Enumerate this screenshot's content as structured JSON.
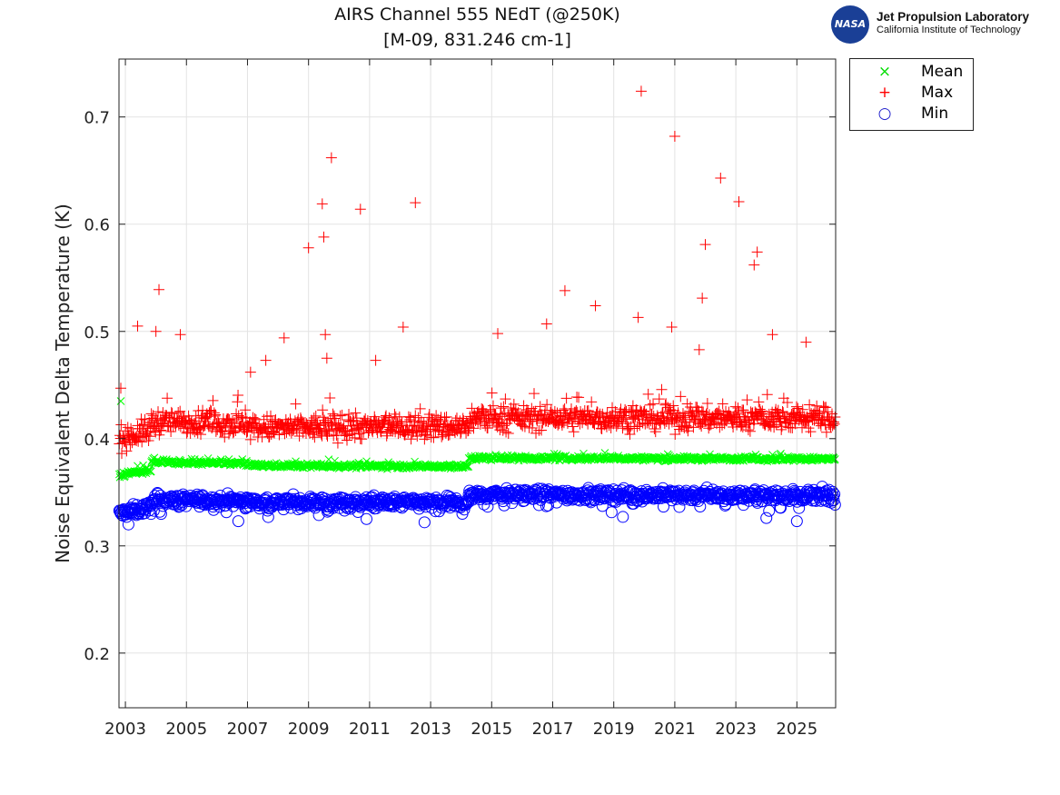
{
  "header": {
    "logo_line1": "Jet Propulsion Laboratory",
    "logo_line2": "California Institute of Technology",
    "logo_badge": "NASA"
  },
  "chart_data": {
    "type": "scatter",
    "title": [
      "AIRS Channel 555 NEdT (@250K)",
      "[M-09, 831.246 cm-1]"
    ],
    "xlabel": "",
    "ylabel": "Noise Equivalent Delta Temperature (K)",
    "xlim": [
      2002.79,
      2026.27
    ],
    "ylim": [
      0.149,
      0.754
    ],
    "xticks": [
      2003,
      2005,
      2007,
      2009,
      2011,
      2013,
      2015,
      2017,
      2019,
      2021,
      2023,
      2025
    ],
    "yticks": [
      0.2,
      0.3,
      0.4,
      0.5,
      0.6,
      0.7
    ],
    "grid": true,
    "legend_position": "outside-top-right",
    "series": [
      {
        "name": "Mean",
        "marker": "x",
        "color": "#00ff00",
        "segments": [
          {
            "from": 2002.8,
            "to": 2003.85,
            "start": 0.366,
            "end": 0.371,
            "noise": 0.002
          },
          {
            "from": 2003.85,
            "to": 2007.0,
            "start": 0.378,
            "end": 0.377,
            "noise": 0.0015
          },
          {
            "from": 2007.0,
            "to": 2014.25,
            "start": 0.375,
            "end": 0.374,
            "noise": 0.0015
          },
          {
            "from": 2014.25,
            "to": 2026.25,
            "start": 0.382,
            "end": 0.381,
            "noise": 0.0015
          }
        ],
        "outliers": [
          [
            2002.85,
            0.435
          ],
          [
            2024.2,
            0.385
          ]
        ]
      },
      {
        "name": "Max",
        "marker": "+",
        "color": "#ff0000",
        "segments": [
          {
            "from": 2002.8,
            "to": 2003.85,
            "start": 0.4,
            "end": 0.408,
            "noise": 0.008
          },
          {
            "from": 2003.85,
            "to": 2007.0,
            "start": 0.416,
            "end": 0.414,
            "noise": 0.008
          },
          {
            "from": 2007.0,
            "to": 2014.25,
            "start": 0.41,
            "end": 0.411,
            "noise": 0.008
          },
          {
            "from": 2014.25,
            "to": 2026.25,
            "start": 0.419,
            "end": 0.419,
            "noise": 0.008
          }
        ],
        "outliers": [
          [
            2002.85,
            0.447
          ],
          [
            2003.4,
            0.505
          ],
          [
            2004.0,
            0.5
          ],
          [
            2004.1,
            0.539
          ],
          [
            2004.8,
            0.497
          ],
          [
            2007.1,
            0.462
          ],
          [
            2007.6,
            0.473
          ],
          [
            2008.2,
            0.494
          ],
          [
            2009.0,
            0.578
          ],
          [
            2009.45,
            0.619
          ],
          [
            2009.5,
            0.588
          ],
          [
            2009.55,
            0.497
          ],
          [
            2009.6,
            0.475
          ],
          [
            2009.75,
            0.662
          ],
          [
            2010.7,
            0.614
          ],
          [
            2011.2,
            0.473
          ],
          [
            2012.1,
            0.504
          ],
          [
            2012.5,
            0.62
          ],
          [
            2015.2,
            0.498
          ],
          [
            2016.8,
            0.507
          ],
          [
            2017.4,
            0.538
          ],
          [
            2018.4,
            0.524
          ],
          [
            2019.8,
            0.513
          ],
          [
            2019.9,
            0.724
          ],
          [
            2020.9,
            0.504
          ],
          [
            2021.0,
            0.682
          ],
          [
            2021.8,
            0.483
          ],
          [
            2021.9,
            0.531
          ],
          [
            2022.0,
            0.581
          ],
          [
            2022.5,
            0.643
          ],
          [
            2023.1,
            0.621
          ],
          [
            2023.6,
            0.562
          ],
          [
            2023.7,
            0.574
          ],
          [
            2024.2,
            0.497
          ],
          [
            2025.3,
            0.49
          ]
        ]
      },
      {
        "name": "Min",
        "marker": "o",
        "color": "#0000ff",
        "segments": [
          {
            "from": 2002.8,
            "to": 2003.85,
            "start": 0.33,
            "end": 0.336,
            "noise": 0.004
          },
          {
            "from": 2003.85,
            "to": 2007.0,
            "start": 0.343,
            "end": 0.342,
            "noise": 0.004
          },
          {
            "from": 2007.0,
            "to": 2014.25,
            "start": 0.341,
            "end": 0.34,
            "noise": 0.004
          },
          {
            "from": 2014.25,
            "to": 2026.25,
            "start": 0.348,
            "end": 0.347,
            "noise": 0.004
          }
        ],
        "outliers": [
          [
            2003.1,
            0.32
          ],
          [
            2006.7,
            0.323
          ],
          [
            2010.9,
            0.325
          ],
          [
            2012.8,
            0.322
          ],
          [
            2019.3,
            0.327
          ],
          [
            2024.0,
            0.326
          ],
          [
            2025.0,
            0.323
          ]
        ]
      }
    ]
  }
}
